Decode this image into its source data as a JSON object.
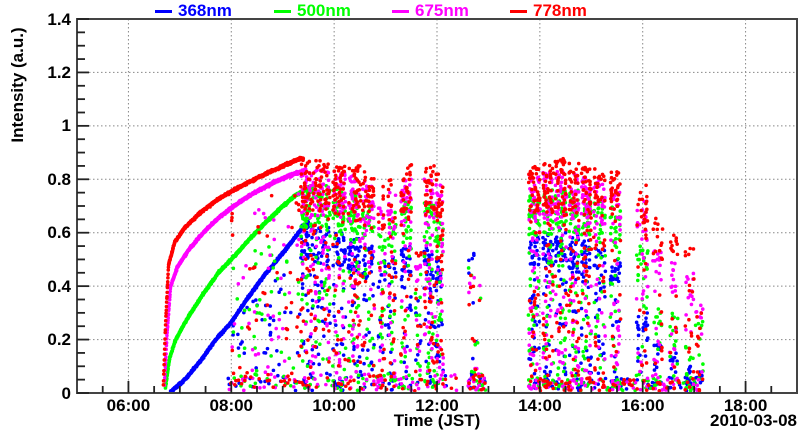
{
  "figure": {
    "background": "#ffffff",
    "frame_color": "#444444",
    "grid_color": "#888888",
    "tick_color": "#222222"
  },
  "legend": {
    "entries": [
      {
        "label": "368nm",
        "color": "#0000ff"
      },
      {
        "label": "500nm",
        "color": "#00ff00"
      },
      {
        "label": "675nm",
        "color": "#ff00ff"
      },
      {
        "label": "778nm",
        "color": "#ff0000"
      }
    ]
  },
  "axes": {
    "ylabel": "Intensity (a.u.)",
    "xlabel": "Time (JST)",
    "date_label": "2010-03-08",
    "yticks": {
      "labels": [
        "0",
        "0.2",
        "0.4",
        "0.6",
        "0.8",
        "1",
        "1.2",
        "1.4"
      ],
      "values": [
        0,
        0.2,
        0.4,
        0.6,
        0.8,
        1.0,
        1.2,
        1.4
      ]
    },
    "xticks": {
      "labels": [
        "06:00",
        "08:00",
        "10:00",
        "12:00",
        "14:00",
        "16:00",
        "18:00"
      ],
      "values": [
        6,
        8,
        10,
        12,
        14,
        16,
        18
      ]
    },
    "minor_x_step_hours": 0.5,
    "minor_y_step": 0.05,
    "grid_style": "dotted"
  },
  "chart_data": {
    "type": "scatter",
    "title": "",
    "xlabel": "Time (JST)",
    "ylabel": "Intensity (a.u.)",
    "date": "2010-03-08",
    "x_unit": "hours JST",
    "xlim": [
      5.0,
      19.0
    ],
    "ylim": [
      0,
      1.4
    ],
    "grid": true,
    "legend_position": "top",
    "marker_radius": 1.8,
    "seed": 42,
    "series": [
      {
        "name": "368nm",
        "color": "#0000ff",
        "curve": [
          [
            6.82,
            0.005
          ],
          [
            7.1,
            0.05
          ],
          [
            7.4,
            0.12
          ],
          [
            7.7,
            0.2
          ],
          [
            8.0,
            0.265
          ],
          [
            8.3,
            0.35
          ],
          [
            8.6,
            0.43
          ],
          [
            8.9,
            0.5
          ],
          [
            9.15,
            0.56
          ],
          [
            9.35,
            0.61
          ],
          [
            9.5,
            0.64
          ]
        ]
      },
      {
        "name": "500nm",
        "color": "#00ff00",
        "curve": [
          [
            6.72,
            0.02
          ],
          [
            6.8,
            0.13
          ],
          [
            6.92,
            0.2
          ],
          [
            7.15,
            0.28
          ],
          [
            7.45,
            0.37
          ],
          [
            7.75,
            0.45
          ],
          [
            8.05,
            0.51
          ],
          [
            8.35,
            0.575
          ],
          [
            8.65,
            0.635
          ],
          [
            8.95,
            0.69
          ],
          [
            9.25,
            0.74
          ],
          [
            9.5,
            0.77
          ],
          [
            9.6,
            0.775
          ]
        ]
      },
      {
        "name": "675nm",
        "color": "#ff00ff",
        "curve": [
          [
            6.7,
            0.03
          ],
          [
            6.75,
            0.22
          ],
          [
            6.82,
            0.4
          ],
          [
            6.95,
            0.47
          ],
          [
            7.15,
            0.53
          ],
          [
            7.45,
            0.6
          ],
          [
            7.75,
            0.655
          ],
          [
            8.05,
            0.7
          ],
          [
            8.45,
            0.75
          ],
          [
            8.85,
            0.79
          ],
          [
            9.15,
            0.815
          ],
          [
            9.45,
            0.835
          ]
        ]
      },
      {
        "name": "778nm",
        "color": "#ff0000",
        "curve": [
          [
            6.68,
            0.03
          ],
          [
            6.72,
            0.25
          ],
          [
            6.78,
            0.48
          ],
          [
            6.9,
            0.565
          ],
          [
            7.1,
            0.62
          ],
          [
            7.4,
            0.675
          ],
          [
            7.7,
            0.72
          ],
          [
            8.0,
            0.755
          ],
          [
            8.4,
            0.795
          ],
          [
            8.8,
            0.832
          ],
          [
            9.1,
            0.858
          ],
          [
            9.3,
            0.875
          ],
          [
            9.4,
            0.88
          ]
        ]
      }
    ],
    "curve_step_hours": 0.0035,
    "curve_value_jitter": 0.0065,
    "bursts_tops_order": [
      "368nm",
      "500nm",
      "675nm",
      "778nm"
    ],
    "bursts": [
      {
        "t0": 9.35,
        "t1": 9.6,
        "n": 55,
        "tops": [
          0.63,
          0.78,
          0.84,
          0.875
        ],
        "tf": 0.5
      },
      {
        "t0": 9.62,
        "t1": 9.92,
        "n": 60,
        "tops": [
          0.62,
          0.78,
          0.84,
          0.87
        ],
        "tf": 0.5
      },
      {
        "t0": 9.97,
        "t1": 10.22,
        "n": 55,
        "tops": [
          0.6,
          0.77,
          0.83,
          0.86
        ],
        "tf": 0.5
      },
      {
        "t0": 10.27,
        "t1": 10.52,
        "n": 55,
        "tops": [
          0.58,
          0.76,
          0.82,
          0.86
        ],
        "tf": 0.45
      },
      {
        "t0": 10.55,
        "t1": 10.78,
        "n": 40,
        "tops": [
          0.55,
          0.74,
          0.8,
          0.85
        ],
        "tf": 0.4
      },
      {
        "t0": 10.86,
        "t1": 11.0,
        "n": 20,
        "tops": [
          0.5,
          0.65,
          0.72,
          0.78
        ],
        "tf": 0.3
      },
      {
        "t0": 11.05,
        "t1": 11.2,
        "n": 28,
        "tops": [
          0.52,
          0.68,
          0.75,
          0.8
        ],
        "tf": 0.35
      },
      {
        "t0": 11.3,
        "t1": 11.5,
        "n": 40,
        "tops": [
          0.55,
          0.72,
          0.8,
          0.855
        ],
        "tf": 0.45
      },
      {
        "t0": 11.58,
        "t1": 11.7,
        "n": 14,
        "tops": [
          0.35,
          0.45,
          0.5,
          0.55
        ],
        "tf": 0.2
      },
      {
        "t0": 11.75,
        "t1": 11.97,
        "n": 45,
        "tops": [
          0.55,
          0.72,
          0.8,
          0.855
        ],
        "tf": 0.45
      },
      {
        "t0": 11.98,
        "t1": 12.12,
        "n": 35,
        "tops": [
          0.5,
          0.68,
          0.78,
          0.84
        ],
        "tf": 0.45
      },
      {
        "t0": 12.6,
        "t1": 12.85,
        "n": 10,
        "tops": [
          0.58,
          0.5,
          0.45,
          0.45
        ],
        "tf": 0.2
      },
      {
        "t0": 13.78,
        "t1": 14.0,
        "n": 55,
        "tops": [
          0.6,
          0.75,
          0.82,
          0.86
        ],
        "tf": 0.45
      },
      {
        "t0": 14.06,
        "t1": 14.26,
        "n": 55,
        "tops": [
          0.6,
          0.76,
          0.83,
          0.86
        ],
        "tf": 0.45
      },
      {
        "t0": 14.3,
        "t1": 14.52,
        "n": 55,
        "tops": [
          0.62,
          0.77,
          0.83,
          0.88
        ],
        "tf": 0.5
      },
      {
        "t0": 14.56,
        "t1": 14.76,
        "n": 50,
        "tops": [
          0.6,
          0.76,
          0.82,
          0.86
        ],
        "tf": 0.45
      },
      {
        "t0": 14.8,
        "t1": 15.0,
        "n": 50,
        "tops": [
          0.58,
          0.75,
          0.81,
          0.85
        ],
        "tf": 0.45
      },
      {
        "t0": 15.05,
        "t1": 15.27,
        "n": 40,
        "tops": [
          0.55,
          0.72,
          0.8,
          0.84
        ],
        "tf": 0.4
      },
      {
        "t0": 15.37,
        "t1": 15.57,
        "n": 38,
        "tops": [
          0.5,
          0.7,
          0.79,
          0.83
        ],
        "tf": 0.45
      },
      {
        "t0": 15.88,
        "t1": 16.1,
        "n": 32,
        "tops": [
          0.3,
          0.55,
          0.72,
          0.78
        ],
        "tf": 0.4
      },
      {
        "t0": 16.2,
        "t1": 16.38,
        "n": 25,
        "tops": [
          0.18,
          0.32,
          0.55,
          0.66
        ],
        "tf": 0.35
      },
      {
        "t0": 16.52,
        "t1": 16.68,
        "n": 22,
        "tops": [
          0.15,
          0.3,
          0.5,
          0.64
        ],
        "tf": 0.35
      },
      {
        "t0": 16.82,
        "t1": 17.0,
        "n": 20,
        "tops": [
          0.1,
          0.18,
          0.45,
          0.55
        ],
        "tf": 0.3
      },
      {
        "t0": 17.02,
        "t1": 17.18,
        "n": 14,
        "tops": [
          0.08,
          0.3,
          0.35,
          0.32
        ],
        "tf": 0.25
      }
    ],
    "under_curve_scatter": {
      "t0": 8.0,
      "t1": 9.4,
      "n": 45
    },
    "baseline_scatter": [
      {
        "t0": 7.9,
        "t1": 12.4,
        "n": 40,
        "vmax": 0.06
      },
      {
        "t0": 12.6,
        "t1": 12.95,
        "n": 12,
        "vmax": 0.07
      },
      {
        "t0": 13.78,
        "t1": 17.15,
        "n": 55,
        "vmax": 0.05
      }
    ]
  }
}
